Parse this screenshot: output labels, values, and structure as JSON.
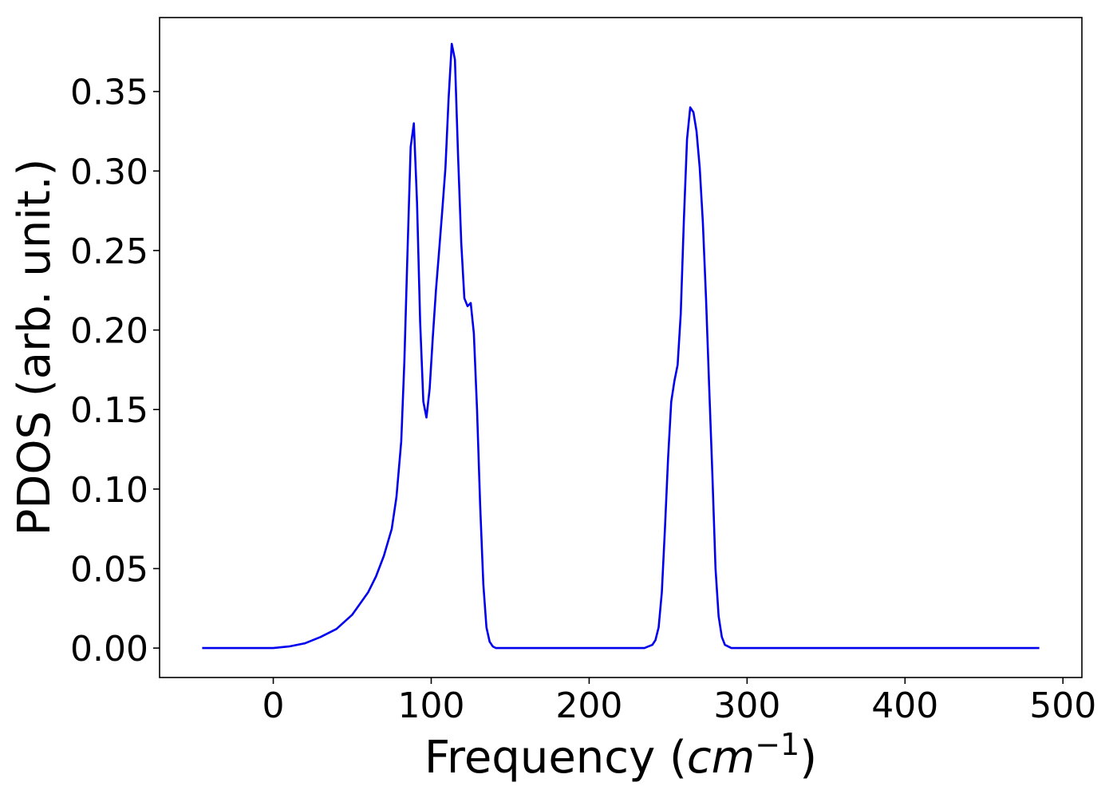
{
  "chart_data": {
    "type": "line",
    "title": "",
    "xlabel": "Frequency (",
    "xlabel_math": "cm",
    "xlabel_sup": "−1",
    "xlabel_close": ")",
    "ylabel": "PDOS (arb. unit.)",
    "xlim": [
      -72,
      512
    ],
    "ylim": [
      -0.0185,
      0.3965
    ],
    "xticks": [
      0,
      100,
      200,
      300,
      400,
      500
    ],
    "yticks": [
      0.0,
      0.05,
      0.1,
      0.15,
      0.2,
      0.25,
      0.3,
      0.35
    ],
    "xtick_labels": [
      "0",
      "100",
      "200",
      "300",
      "400",
      "500"
    ],
    "ytick_labels": [
      "0.00",
      "0.05",
      "0.10",
      "0.15",
      "0.20",
      "0.25",
      "0.30",
      "0.35"
    ],
    "grid": false,
    "series": [
      {
        "color": "#0000ee",
        "x": [
          -45,
          -30,
          -15,
          0,
          10,
          20,
          30,
          40,
          50,
          60,
          65,
          70,
          75,
          78,
          81,
          83,
          85,
          87,
          89,
          91,
          93,
          95,
          97,
          99,
          101,
          103,
          105,
          107,
          109,
          111,
          113,
          115,
          117,
          119,
          121,
          123,
          125,
          127,
          129,
          131,
          133,
          135,
          137,
          139,
          141,
          143,
          145,
          147,
          149,
          151,
          153,
          155,
          157,
          160,
          165,
          180,
          200,
          220,
          235,
          240,
          242,
          244,
          246,
          248,
          250,
          252,
          254,
          256,
          258,
          260,
          262,
          264,
          266,
          268,
          270,
          272,
          274,
          276,
          278,
          280,
          282,
          284,
          286,
          288,
          290,
          292,
          294,
          296,
          298,
          300,
          302,
          305,
          310,
          330,
          360,
          390,
          420,
          423,
          425,
          427,
          429,
          431,
          433,
          435,
          437,
          439,
          441,
          443,
          445,
          447,
          449,
          451,
          453,
          455,
          460,
          470,
          485
        ],
        "y": [
          0.0,
          0.0,
          0.0,
          0.0,
          0.001,
          0.003,
          0.007,
          0.012,
          0.021,
          0.035,
          0.045,
          0.058,
          0.075,
          0.095,
          0.13,
          0.18,
          0.25,
          0.315,
          0.33,
          0.28,
          0.205,
          0.155,
          0.145,
          0.163,
          0.195,
          0.225,
          0.25,
          0.275,
          0.302,
          0.345,
          0.38,
          0.37,
          0.31,
          0.255,
          0.22,
          0.215,
          0.217,
          0.198,
          0.15,
          0.09,
          0.04,
          0.013,
          0.004,
          0.001,
          0.0,
          0.0,
          0.0,
          0.0,
          0.0,
          0.0,
          0.0,
          0.0,
          0.0,
          0.0,
          0.0,
          0.0,
          0.0,
          0.0,
          0.0,
          0.002,
          0.005,
          0.013,
          0.035,
          0.075,
          0.12,
          0.155,
          0.168,
          0.178,
          0.21,
          0.27,
          0.32,
          0.34,
          0.337,
          0.325,
          0.302,
          0.268,
          0.22,
          0.165,
          0.11,
          0.05,
          0.02,
          0.007,
          0.002,
          0.001,
          0.0,
          0.0,
          0.0,
          0.0,
          0.0,
          0.0,
          0.0,
          0.0,
          0.0,
          0.0,
          0.0,
          0.0,
          0.0,
          0.0,
          0.0,
          0.0,
          0.0,
          0.0,
          0.0,
          0.0,
          0.0,
          0.0,
          0.0,
          0.0,
          0.0,
          0.0,
          0.0,
          0.0,
          0.0,
          0.0,
          0.0,
          0.0,
          0.0
        ]
      }
    ]
  }
}
